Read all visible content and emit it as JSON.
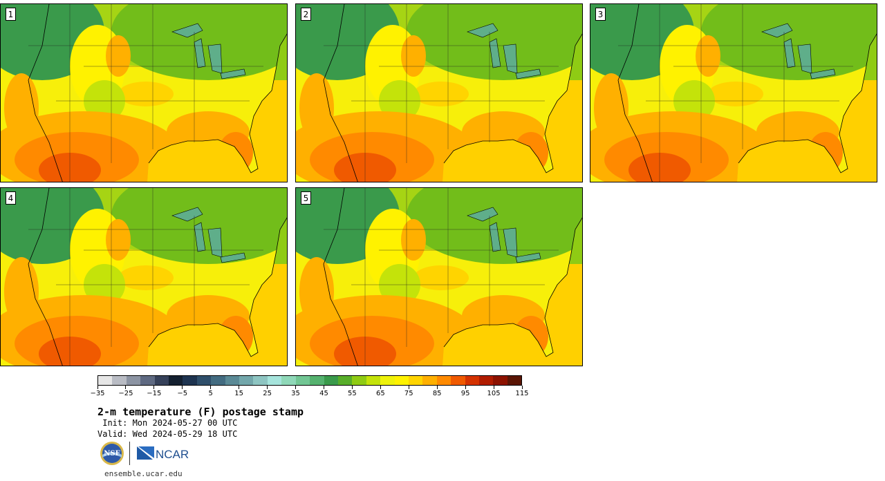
{
  "panels": [
    {
      "label": "1"
    },
    {
      "label": "2"
    },
    {
      "label": "3"
    },
    {
      "label": "4"
    },
    {
      "label": "5"
    }
  ],
  "colorbar": {
    "colors": [
      "#e6e6e6",
      "#b9bcc4",
      "#8c94a3",
      "#5f6a82",
      "#36415a",
      "#142030",
      "#1e3450",
      "#2f4f6b",
      "#436c81",
      "#5b8a96",
      "#73a7ab",
      "#8ec5c2",
      "#a6e4dc",
      "#8fd8b8",
      "#72c694",
      "#55b26f",
      "#3a9a4b",
      "#58ae2a",
      "#8fcb14",
      "#c4e30a",
      "#eef20b",
      "#fff200",
      "#ffd400",
      "#ffb000",
      "#ff8a00",
      "#f05a00",
      "#d43200",
      "#b01c00",
      "#8c1200",
      "#5a1505"
    ],
    "tick_labels": [
      "−35",
      "−25",
      "−15",
      "−5",
      "5",
      "15",
      "25",
      "35",
      "45",
      "55",
      "65",
      "75",
      "85",
      "95",
      "105",
      "115"
    ]
  },
  "title": "2-m temperature (F) postage stamp",
  "init_line": " Init: Mon 2024-05-27 00 UTC",
  "valid_line": "Valid: Wed 2024-05-29 18 UTC",
  "logos": {
    "nsf_text": "NSF",
    "ncar_text": "NCAR"
  },
  "site": "ensemble.ucar.edu"
}
